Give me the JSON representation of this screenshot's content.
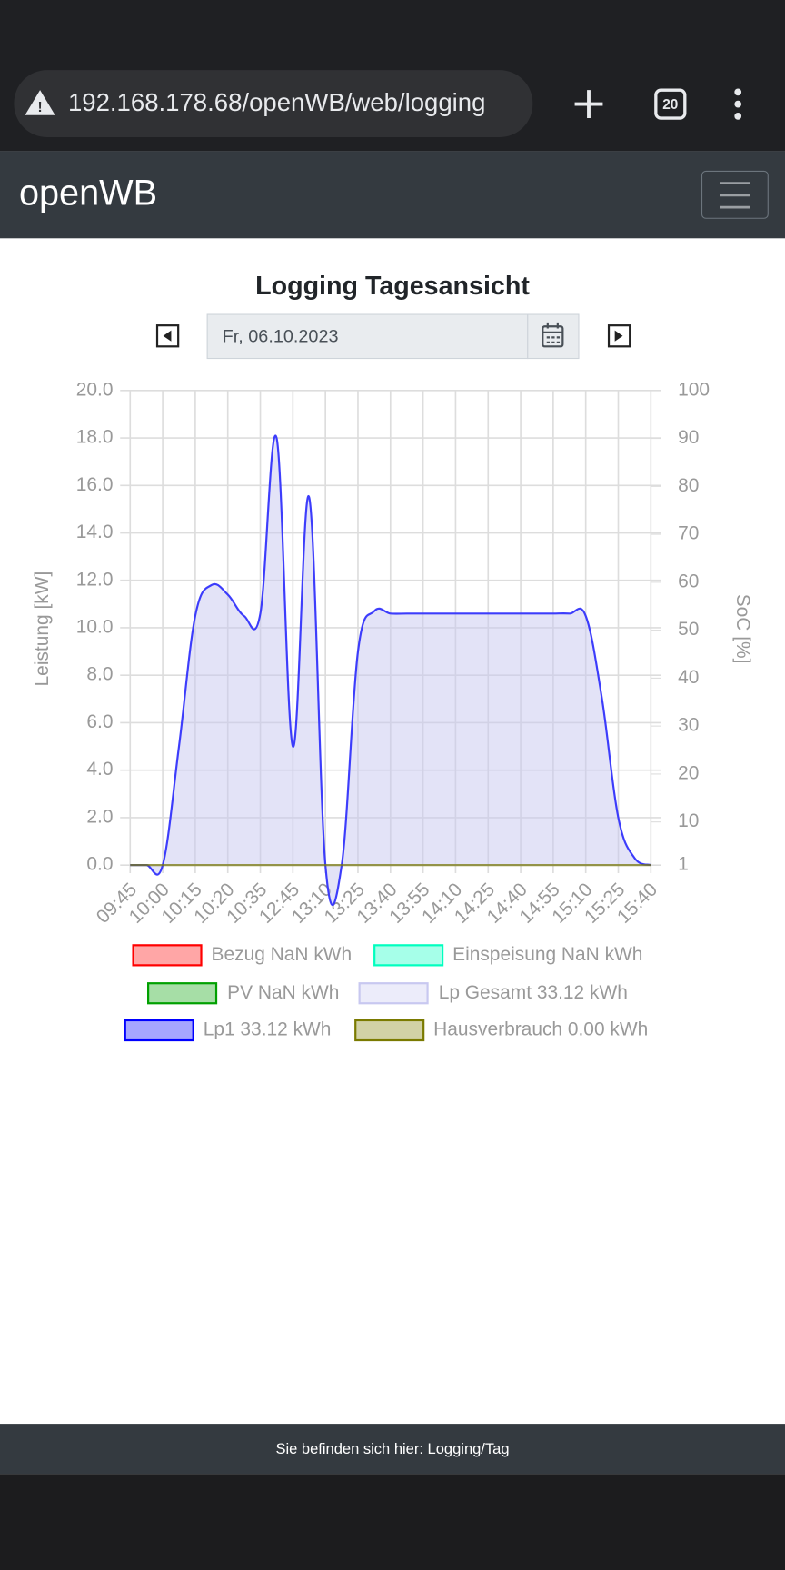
{
  "browser": {
    "url": "192.168.178.68/openWB/web/logging",
    "tab_count": "20"
  },
  "navbar": {
    "brand": "openWB"
  },
  "page": {
    "title": "Logging Tagesansicht",
    "date": "Fr, 06.10.2023"
  },
  "chart_data": {
    "type": "line",
    "categories": [
      "09:45",
      null,
      "10:00",
      null,
      "10:15",
      null,
      "10:20",
      null,
      "10:35",
      null,
      "12:45",
      null,
      "13:10",
      null,
      "13:25",
      null,
      "13:40",
      null,
      "13:55",
      null,
      "14:10",
      null,
      "14:25",
      null,
      "14:40",
      null,
      "14:55",
      null,
      "15:10",
      null,
      "15:25",
      null,
      "15:40"
    ],
    "ylabel": "Leistung [kW]",
    "y2label": "SoC [%]",
    "ylim": [
      0,
      20
    ],
    "yticks": [
      {
        "value": 0,
        "label": "0.0"
      },
      {
        "value": 2,
        "label": "2.0"
      },
      {
        "value": 4,
        "label": "4.0"
      },
      {
        "value": 6,
        "label": "6.0"
      },
      {
        "value": 8,
        "label": "8.0"
      },
      {
        "value": 10,
        "label": "10.0"
      },
      {
        "value": 12,
        "label": "12.0"
      },
      {
        "value": 14,
        "label": "14.0"
      },
      {
        "value": 16,
        "label": "16.0"
      },
      {
        "value": 18,
        "label": "18.0"
      },
      {
        "value": 20,
        "label": "20.0"
      }
    ],
    "y2lim": [
      1,
      100
    ],
    "y2ticks": [
      1,
      10,
      20,
      30,
      40,
      50,
      60,
      70,
      80,
      90,
      100
    ],
    "grid": true,
    "series": [
      {
        "name": "Bezug NaN kWh",
        "color": "#ff0000"
      },
      {
        "name": "Einspeisung NaN kWh",
        "color": "#00ffbf"
      },
      {
        "name": "PV NaN kWh",
        "color": "#00a000"
      },
      {
        "name": "Lp Gesamt 33.12 kWh",
        "color": "#c8c8f0",
        "fill": true,
        "values": [
          0,
          0,
          0,
          5.0,
          10.5,
          11.8,
          11.4,
          10.5,
          10.6,
          18.0,
          5.0,
          15.5,
          0,
          0,
          9.0,
          10.7,
          10.6,
          10.6,
          10.6,
          10.6,
          10.6,
          10.6,
          10.6,
          10.6,
          10.6,
          10.6,
          10.6,
          10.6,
          10.5,
          7.0,
          2.0,
          0.3,
          0
        ]
      },
      {
        "name": "Lp1 33.12 kWh",
        "color": "#0000ff",
        "values": [
          0,
          0,
          0,
          5.0,
          10.5,
          11.8,
          11.4,
          10.5,
          10.6,
          18.0,
          5.0,
          15.5,
          0,
          0,
          9.0,
          10.7,
          10.6,
          10.6,
          10.6,
          10.6,
          10.6,
          10.6,
          10.6,
          10.6,
          10.6,
          10.6,
          10.6,
          10.6,
          10.5,
          7.0,
          2.0,
          0.3,
          0
        ]
      },
      {
        "name": "Hausverbrauch 0.00 kWh",
        "color": "#7a7a00",
        "values": [
          0,
          0,
          0,
          0,
          0,
          0,
          0,
          0,
          0,
          0,
          0,
          0,
          0,
          0,
          0,
          0,
          0,
          0,
          0,
          0,
          0,
          0,
          0,
          0,
          0,
          0,
          0,
          0,
          0,
          0,
          0,
          0,
          0
        ]
      }
    ]
  },
  "footer": {
    "text": "Sie befinden sich hier: Logging/Tag"
  }
}
